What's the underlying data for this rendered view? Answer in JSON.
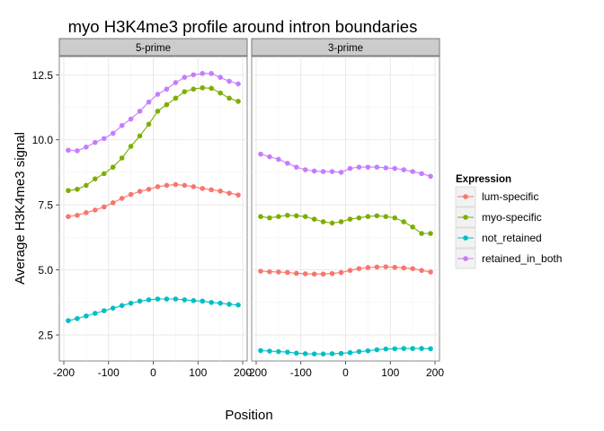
{
  "chart_data": {
    "type": "line",
    "title": "myo H3K4me3 profile around intron boundaries",
    "xlabel": "Position",
    "ylabel": "Average H3K4me3 signal",
    "xlim": [
      -200,
      200
    ],
    "ylim": [
      1.5,
      13.2
    ],
    "x_ticks": [
      "-200",
      "-100",
      "0",
      "100",
      "200"
    ],
    "y_ticks": [
      "2.5",
      "5.0",
      "7.5",
      "10.0",
      "12.5"
    ],
    "grid": true,
    "legend_position": "right",
    "legend_title": "Expression",
    "x": [
      -190,
      -170,
      -150,
      -130,
      -110,
      -90,
      -70,
      -50,
      -30,
      -10,
      10,
      30,
      50,
      70,
      90,
      110,
      130,
      150,
      170,
      190
    ],
    "panels": [
      {
        "label": "5-prime",
        "series": [
          {
            "name": "lum-specific",
            "color": "#f8766d",
            "values": [
              7.05,
              7.1,
              7.2,
              7.3,
              7.42,
              7.58,
              7.75,
              7.9,
              8.02,
              8.1,
              8.2,
              8.25,
              8.28,
              8.25,
              8.2,
              8.13,
              8.08,
              8.03,
              7.95,
              7.88
            ]
          },
          {
            "name": "myo-specific",
            "color": "#7cae00",
            "values": [
              8.05,
              8.1,
              8.25,
              8.5,
              8.7,
              8.95,
              9.3,
              9.75,
              10.15,
              10.6,
              11.1,
              11.35,
              11.6,
              11.85,
              11.95,
              12.0,
              11.98,
              11.8,
              11.6,
              11.48
            ]
          },
          {
            "name": "not_retained",
            "color": "#00bfc4",
            "values": [
              3.05,
              3.13,
              3.23,
              3.33,
              3.43,
              3.53,
              3.63,
              3.72,
              3.8,
              3.85,
              3.88,
              3.88,
              3.88,
              3.85,
              3.82,
              3.8,
              3.75,
              3.72,
              3.68,
              3.65
            ]
          },
          {
            "name": "retained_in_both",
            "color": "#c77cff",
            "values": [
              9.6,
              9.58,
              9.72,
              9.9,
              10.05,
              10.25,
              10.55,
              10.8,
              11.1,
              11.45,
              11.75,
              11.95,
              12.2,
              12.4,
              12.5,
              12.55,
              12.55,
              12.4,
              12.25,
              12.15
            ]
          }
        ]
      },
      {
        "label": "3-prime",
        "series": [
          {
            "name": "lum-specific",
            "color": "#f8766d",
            "values": [
              4.95,
              4.93,
              4.92,
              4.9,
              4.87,
              4.85,
              4.84,
              4.84,
              4.86,
              4.9,
              4.98,
              5.05,
              5.09,
              5.11,
              5.12,
              5.1,
              5.08,
              5.05,
              4.98,
              4.92
            ]
          },
          {
            "name": "myo-specific",
            "color": "#7cae00",
            "values": [
              7.05,
              7.0,
              7.05,
              7.1,
              7.08,
              7.05,
              6.95,
              6.85,
              6.8,
              6.85,
              6.95,
              7.0,
              7.05,
              7.08,
              7.05,
              7.0,
              6.85,
              6.65,
              6.4,
              6.4
            ]
          },
          {
            "name": "not_retained",
            "color": "#00bfc4",
            "values": [
              1.9,
              1.88,
              1.86,
              1.84,
              1.8,
              1.78,
              1.77,
              1.77,
              1.78,
              1.79,
              1.82,
              1.86,
              1.89,
              1.93,
              1.96,
              1.97,
              1.98,
              1.98,
              1.98,
              1.97
            ]
          },
          {
            "name": "retained_in_both",
            "color": "#c77cff",
            "values": [
              9.45,
              9.35,
              9.25,
              9.1,
              8.95,
              8.85,
              8.8,
              8.78,
              8.78,
              8.75,
              8.9,
              8.95,
              8.95,
              8.95,
              8.92,
              8.9,
              8.85,
              8.78,
              8.7,
              8.6
            ]
          }
        ]
      }
    ]
  }
}
